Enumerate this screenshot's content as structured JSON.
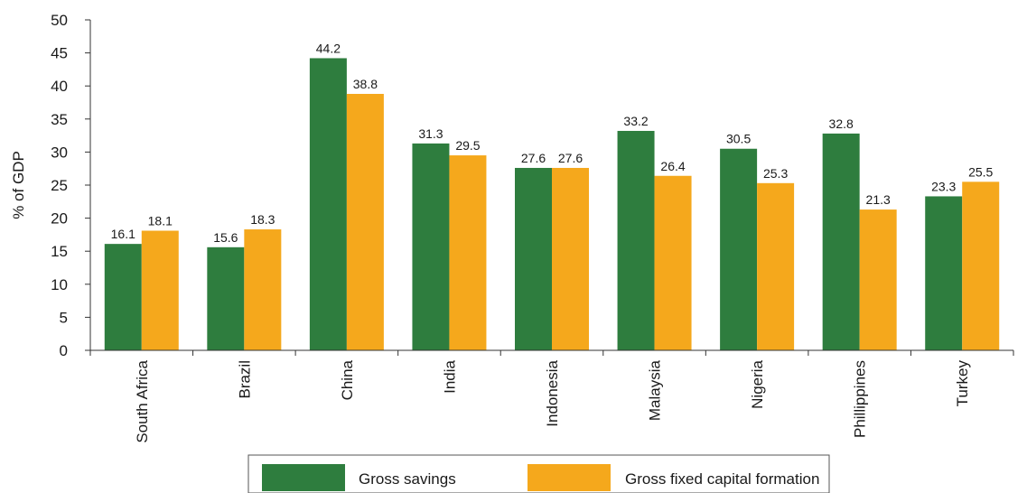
{
  "chart_data": {
    "type": "bar",
    "title": "",
    "xlabel": "",
    "ylabel": "% of GDP",
    "ylim": [
      0,
      50
    ],
    "yticks": [
      0,
      5,
      10,
      15,
      20,
      25,
      30,
      35,
      40,
      45,
      50
    ],
    "grid": false,
    "legend_position": "bottom",
    "categories": [
      "South Africa",
      "Brazil",
      "China",
      "India",
      "Indonesia",
      "Malaysia",
      "Nigeria",
      "Phillippines",
      "Turkey"
    ],
    "series": [
      {
        "name": "Gross savings",
        "color": "#2e7d3e",
        "values": [
          16.1,
          15.6,
          44.2,
          31.3,
          27.6,
          33.2,
          30.5,
          32.8,
          23.3
        ],
        "labels": [
          "16.1",
          "15.6",
          "44.2",
          "31.3",
          "27.6",
          "33.2",
          "30.5",
          "32.8",
          "23.3"
        ]
      },
      {
        "name": "Gross fixed capital formation",
        "color": "#f5a81c",
        "values": [
          18.1,
          18.3,
          38.8,
          29.5,
          27.6,
          26.4,
          25.3,
          21.3,
          25.5
        ],
        "labels": [
          "18.1",
          "18.3",
          "38.8",
          "29.5",
          "27.6",
          "26.4",
          "25.3",
          "21.3",
          "25.5"
        ]
      }
    ]
  }
}
